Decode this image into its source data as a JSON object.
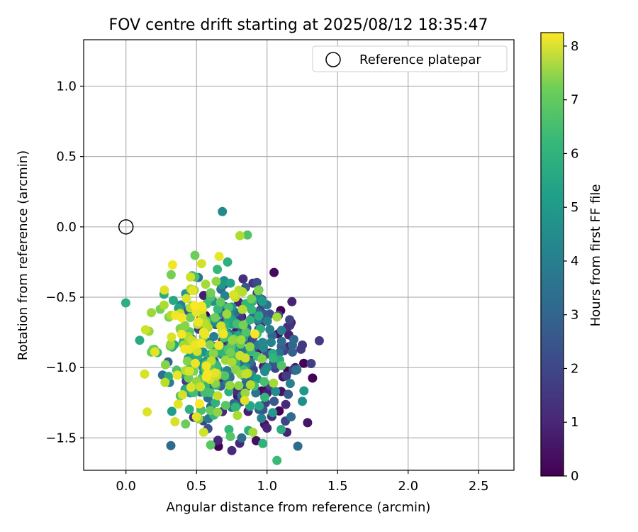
{
  "chart_data": {
    "type": "scatter",
    "title": "FOV centre drift starting at 2025/08/12 18:35:47",
    "xlabel": "Angular distance from reference (arcmin)",
    "ylabel": "Rotation from reference (arcmin)",
    "xlim": [
      -0.3,
      2.75
    ],
    "ylim": [
      -1.73,
      1.33
    ],
    "xticks": [
      0.0,
      0.5,
      1.0,
      1.5,
      2.0,
      2.5
    ],
    "xtick_labels": [
      "0.0",
      "0.5",
      "1.0",
      "1.5",
      "2.0",
      "2.5"
    ],
    "yticks": [
      -1.5,
      -1.0,
      -0.5,
      0.0,
      0.5,
      1.0
    ],
    "ytick_labels": [
      "−1.5",
      "−1.0",
      "−0.5",
      "0.0",
      "0.5",
      "1.0"
    ],
    "grid": true,
    "legend": {
      "placement": "top-right",
      "entries": [
        "Reference platepar"
      ]
    },
    "reference_point": {
      "name": "Reference platepar",
      "x": 0.0,
      "y": 0.0
    },
    "colorbar": {
      "label": "Hours from first FF file",
      "range": [
        0,
        8.25
      ],
      "ticks": [
        0,
        1,
        2,
        3,
        4,
        5,
        6,
        7,
        8
      ],
      "tick_labels": [
        "0",
        "1",
        "2",
        "3",
        "4",
        "5",
        "6",
        "7",
        "8"
      ],
      "colormap": "viridis"
    },
    "series": [
      {
        "color_by": "hours",
        "points": [
          [
            1.26,
            -0.97,
            0.1
          ],
          [
            1.08,
            -0.76,
            0.3
          ],
          [
            1.17,
            -0.68,
            0.5
          ],
          [
            1.2,
            -1.0,
            0.6
          ],
          [
            1.1,
            -1.17,
            0.4
          ],
          [
            1.14,
            -1.46,
            0.8
          ],
          [
            1.0,
            -1.43,
            0.9
          ],
          [
            0.75,
            -1.59,
            1.0
          ],
          [
            0.83,
            -0.37,
            1.1
          ],
          [
            0.9,
            -0.4,
            1.2
          ],
          [
            0.93,
            -0.47,
            1.3
          ],
          [
            1.25,
            -0.84,
            1.4
          ],
          [
            1.24,
            -0.87,
            1.5
          ],
          [
            1.16,
            -0.66,
            1.6
          ],
          [
            1.13,
            -1.38,
            1.7
          ],
          [
            1.12,
            -0.88,
            1.8
          ],
          [
            1.08,
            -0.63,
            1.9
          ],
          [
            1.02,
            -0.62,
            2.0
          ],
          [
            0.95,
            -0.62,
            2.1
          ],
          [
            0.97,
            -1.3,
            2.2
          ],
          [
            1.05,
            -1.24,
            2.3
          ],
          [
            1.15,
            -1.19,
            2.4
          ],
          [
            1.18,
            -0.89,
            2.5
          ],
          [
            1.2,
            -1.02,
            2.6
          ],
          [
            1.18,
            -0.84,
            2.7
          ],
          [
            1.19,
            -0.8,
            2.8
          ],
          [
            1.17,
            -1.35,
            2.9
          ],
          [
            0.82,
            -1.5,
            3.0
          ],
          [
            0.88,
            -0.96,
            3.1
          ],
          [
            0.92,
            -1.18,
            3.2
          ],
          [
            0.78,
            -0.94,
            3.3
          ],
          [
            0.95,
            -0.84,
            3.4
          ],
          [
            1.02,
            -0.73,
            3.5
          ],
          [
            0.72,
            -1.1,
            3.6
          ],
          [
            0.96,
            -1.36,
            3.7
          ],
          [
            1.0,
            -1.0,
            3.8
          ],
          [
            0.85,
            -0.76,
            3.9
          ],
          [
            1.06,
            -1.17,
            4.0
          ],
          [
            1.25,
            -1.24,
            4.1
          ],
          [
            0.75,
            -0.57,
            4.2
          ],
          [
            0.85,
            -1.0,
            4.3
          ],
          [
            1.04,
            -1.32,
            4.5
          ],
          [
            0.93,
            -1.08,
            4.6
          ],
          [
            0.74,
            -0.4,
            4.7
          ],
          [
            0.88,
            -1.27,
            4.9
          ],
          [
            1.04,
            -0.9,
            5.0
          ],
          [
            1.1,
            -1.44,
            5.1
          ],
          [
            0.72,
            -0.25,
            5.2
          ],
          [
            0.97,
            -1.54,
            5.3
          ],
          [
            0.7,
            -0.7,
            5.4
          ],
          [
            0.73,
            -1.44,
            5.5
          ],
          [
            1.07,
            -1.66,
            5.6
          ],
          [
            0.93,
            -0.92,
            5.7
          ],
          [
            0.98,
            -1.1,
            5.8
          ],
          [
            0.6,
            -0.5,
            5.9
          ],
          [
            0.74,
            -1.49,
            6.0
          ],
          [
            0.6,
            -1.55,
            6.1
          ],
          [
            0.18,
            -0.89,
            6.2
          ],
          [
            0.2,
            -0.87,
            6.3
          ],
          [
            0.55,
            -0.78,
            6.4
          ],
          [
            0.32,
            -0.34,
            6.5
          ],
          [
            0.47,
            -0.56,
            6.6
          ],
          [
            0.28,
            -0.98,
            6.7
          ],
          [
            0.62,
            -0.9,
            6.8
          ],
          [
            0.5,
            -1.1,
            6.9
          ],
          [
            0.18,
            -0.61,
            7.0
          ],
          [
            0.9,
            -1.46,
            7.1
          ],
          [
            0.79,
            -1.34,
            7.2
          ],
          [
            0.44,
            -0.78,
            7.3
          ],
          [
            0.8,
            -0.45,
            7.4
          ],
          [
            0.65,
            -1.2,
            7.5
          ],
          [
            0.38,
            -0.63,
            7.6
          ],
          [
            0.55,
            -1.46,
            7.7
          ],
          [
            0.46,
            -1.14,
            7.8
          ],
          [
            0.37,
            -1.26,
            7.9
          ],
          [
            0.66,
            -0.21,
            8.0
          ],
          [
            0.33,
            -0.27,
            8.1
          ],
          [
            0.5,
            -1.35,
            7.9
          ],
          [
            0.57,
            -0.99,
            8.1
          ],
          [
            0.45,
            -0.87,
            8.0
          ]
        ]
      }
    ],
    "cloud": {
      "count": 440,
      "center": [
        0.72,
        -0.88
      ],
      "spread": [
        0.2,
        0.26
      ]
    }
  }
}
